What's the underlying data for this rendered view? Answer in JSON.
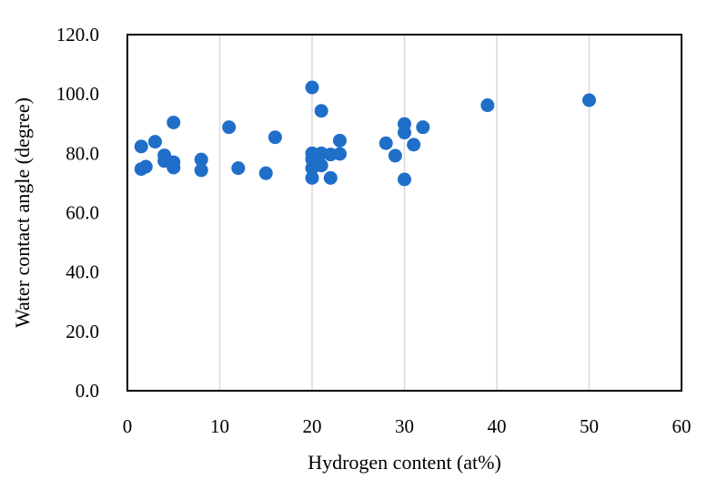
{
  "chart_data": {
    "type": "scatter",
    "title": "",
    "xlabel": "Hydrogen content (at%)",
    "ylabel": "Water contact angle (degree)",
    "xlim": [
      0,
      60
    ],
    "ylim": [
      0,
      120
    ],
    "x_ticks": [
      0,
      10,
      20,
      30,
      40,
      50,
      60
    ],
    "y_ticks": [
      0,
      20,
      40,
      60,
      80,
      100,
      120
    ],
    "x_tick_labels": [
      "0",
      "10",
      "20",
      "30",
      "40",
      "50",
      "60"
    ],
    "y_tick_labels": [
      "0.0",
      "20.0",
      "40.0",
      "60.0",
      "80.0",
      "100.0",
      "120.0"
    ],
    "grid": "vertical",
    "legend": "none",
    "marker_color": "#1f6fc9",
    "series": [
      {
        "points": [
          {
            "x": 1.5,
            "y": 82.3
          },
          {
            "x": 1.5,
            "y": 74.7
          },
          {
            "x": 2,
            "y": 75.5
          },
          {
            "x": 3,
            "y": 83.9
          },
          {
            "x": 4,
            "y": 79.3
          },
          {
            "x": 4,
            "y": 77.4
          },
          {
            "x": 5,
            "y": 90.4
          },
          {
            "x": 5,
            "y": 77.0
          },
          {
            "x": 5,
            "y": 75.2
          },
          {
            "x": 8,
            "y": 77.9
          },
          {
            "x": 8,
            "y": 74.3
          },
          {
            "x": 11,
            "y": 88.8
          },
          {
            "x": 12,
            "y": 75.0
          },
          {
            "x": 15,
            "y": 73.3
          },
          {
            "x": 16,
            "y": 85.4
          },
          {
            "x": 20,
            "y": 102.2
          },
          {
            "x": 20,
            "y": 80.0
          },
          {
            "x": 20,
            "y": 78.0
          },
          {
            "x": 20,
            "y": 75.0
          },
          {
            "x": 20,
            "y": 71.7
          },
          {
            "x": 21,
            "y": 94.3
          },
          {
            "x": 21,
            "y": 80.0
          },
          {
            "x": 21,
            "y": 75.9
          },
          {
            "x": 22,
            "y": 79.6
          },
          {
            "x": 22,
            "y": 71.7
          },
          {
            "x": 23,
            "y": 84.3
          },
          {
            "x": 23,
            "y": 79.8
          },
          {
            "x": 28,
            "y": 83.4
          },
          {
            "x": 29,
            "y": 79.2
          },
          {
            "x": 30,
            "y": 89.9
          },
          {
            "x": 30,
            "y": 87.0
          },
          {
            "x": 30,
            "y": 71.2
          },
          {
            "x": 31,
            "y": 82.9
          },
          {
            "x": 32,
            "y": 88.8
          },
          {
            "x": 39,
            "y": 96.2
          },
          {
            "x": 50,
            "y": 97.9
          }
        ]
      }
    ]
  }
}
